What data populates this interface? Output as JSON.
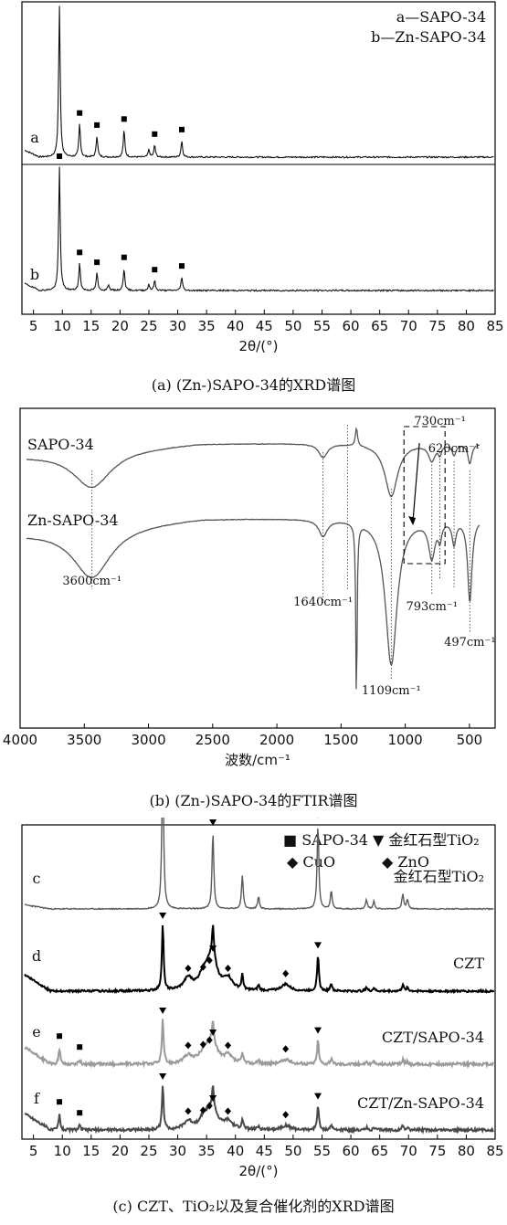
{
  "chart_data": [
    {
      "id": "a",
      "type": "line",
      "caption": "(a) (Zn-)SAPO-34的XRD谱图",
      "xlabel": "2θ/(°)",
      "xlim": [
        3,
        85
      ],
      "xticks": [
        5,
        10,
        15,
        20,
        25,
        30,
        35,
        40,
        45,
        50,
        55,
        60,
        65,
        70,
        75,
        80,
        85
      ],
      "legend": {
        "placement": "top-right",
        "entries": [
          "a—SAPO-34",
          "b—Zn-SAPO-34"
        ]
      },
      "series": [
        {
          "name": "a",
          "marker": "■",
          "peaks": [
            9.5,
            13.0,
            16.0,
            20.7,
            25.0,
            26.0,
            30.7
          ],
          "marked": [
            9.5,
            13.0,
            16.0,
            20.7,
            26.0,
            30.7
          ]
        },
        {
          "name": "b",
          "marker": "■",
          "peaks": [
            9.5,
            13.0,
            16.0,
            18.0,
            20.7,
            25.0,
            26.0,
            30.7
          ],
          "marked": [
            9.5,
            13.0,
            16.0,
            20.7,
            26.0,
            30.7
          ]
        }
      ]
    },
    {
      "id": "b",
      "type": "line",
      "caption": "(b) (Zn-)SAPO-34的FTIR谱图",
      "xlabel": "波数/cm⁻¹",
      "xlim": [
        4000,
        300
      ],
      "xticks": [
        4000,
        3500,
        3000,
        2500,
        2000,
        1500,
        1000,
        500
      ],
      "series": [
        {
          "name": "SAPO-34"
        },
        {
          "name": "Zn-SAPO-34"
        }
      ],
      "annotations": [
        {
          "text": "3600cm⁻¹",
          "x": 3440
        },
        {
          "text": "1640cm⁻¹",
          "x": 1640
        },
        {
          "text": "1109cm⁻¹",
          "x": 1109
        },
        {
          "text": "793cm⁻¹",
          "x": 793
        },
        {
          "text": "730cm⁻¹",
          "x": 730
        },
        {
          "text": "620cm⁻¹",
          "x": 620
        },
        {
          "text": "497cm⁻¹",
          "x": 497
        }
      ]
    },
    {
      "id": "c",
      "type": "line",
      "caption": "(c) CZT、TiO₂以及复合催化剂的XRD谱图",
      "xlabel": "2θ/(°)",
      "xlim": [
        3,
        85
      ],
      "xticks": [
        5,
        10,
        15,
        20,
        25,
        30,
        35,
        40,
        45,
        50,
        55,
        60,
        65,
        70,
        75,
        80,
        85
      ],
      "legend": {
        "placement": "top-right",
        "entries": [
          {
            "symbol": "■",
            "text": "SAPO-34"
          },
          {
            "symbol": "▼",
            "text": "金红石型TiO₂"
          },
          {
            "symbol": "◆",
            "text": "CuO"
          },
          {
            "symbol": "◆",
            "text": "ZnO"
          }
        ]
      },
      "series": [
        {
          "name": "c",
          "label": "金红石型TiO₂",
          "color": "#5a5a5a"
        },
        {
          "name": "d",
          "label": "CZT",
          "color": "#000000"
        },
        {
          "name": "e",
          "label": "CZT/SAPO-34",
          "color": "#9a9a9a"
        },
        {
          "name": "f",
          "label": "CZT/Zn-SAPO-34",
          "color": "#4a4a4a"
        }
      ],
      "tio2_peaks": [
        27.4,
        36.1,
        41.2,
        44.0,
        54.3,
        56.6,
        62.7,
        64.0,
        69.0,
        69.8
      ],
      "cuo_peaks": [
        35.5,
        38.7,
        48.7
      ],
      "zno_peaks": [
        31.8,
        34.4,
        36.3
      ]
    }
  ]
}
